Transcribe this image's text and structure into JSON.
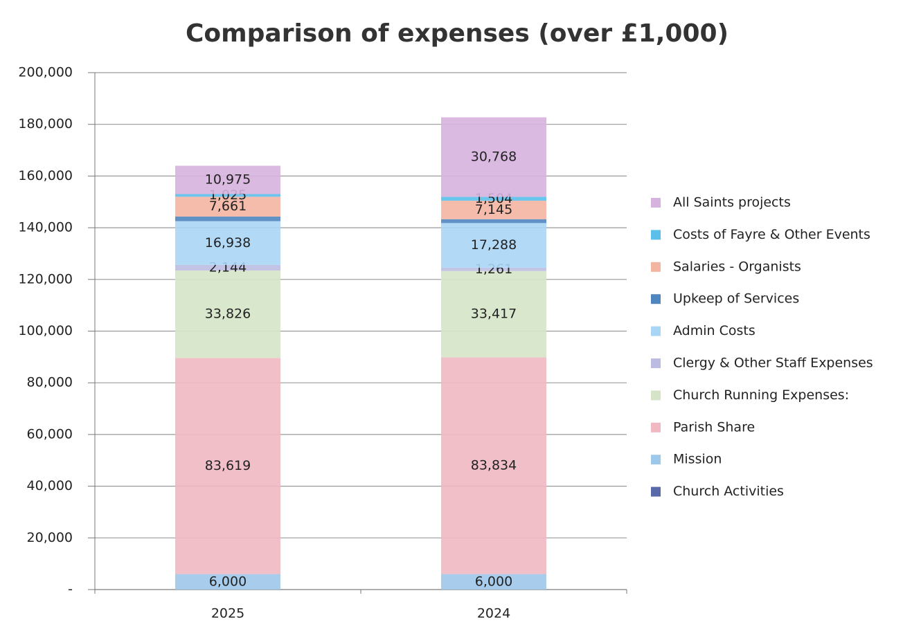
{
  "chart_data": {
    "type": "stacked_bar",
    "title": "Comparison of expenses (over £1,000)",
    "categories": [
      "2025",
      "2024"
    ],
    "series": [
      {
        "name": "Church Activities",
        "color": "#5a6aa8",
        "values": [
          0,
          0
        ],
        "value_labels": [
          null,
          null
        ]
      },
      {
        "name": "Mission",
        "color": "#9ec8ea",
        "values": [
          6000,
          6000
        ],
        "value_labels": [
          "6,000",
          "6,000"
        ]
      },
      {
        "name": "Parish Share",
        "color": "#f0b8c2",
        "values": [
          83619,
          83834
        ],
        "value_labels": [
          "83,619",
          "83,834"
        ]
      },
      {
        "name": "Church Running Expenses:",
        "color": "#d5e4c6",
        "values": [
          33826,
          33417
        ],
        "value_labels": [
          "33,826",
          "33,417"
        ]
      },
      {
        "name": "Clergy & Other Staff Expenses",
        "color": "#bcbce2",
        "values": [
          2144,
          1261
        ],
        "value_labels": [
          "2,144",
          "1,261"
        ]
      },
      {
        "name": "Admin Costs",
        "color": "#aad6f6",
        "values": [
          16938,
          17288
        ],
        "value_labels": [
          "16,938",
          "17,288"
        ]
      },
      {
        "name": "Upkeep of Services",
        "color": "#4f86c0",
        "values": [
          1800,
          1500
        ],
        "value_labels": [
          null,
          null
        ]
      },
      {
        "name": "Salaries - Organists",
        "color": "#f4b4a2",
        "values": [
          7661,
          7145
        ],
        "value_labels": [
          "7,661",
          "7,145"
        ]
      },
      {
        "name": "Costs of Fayre & Other Events",
        "color": "#5bbfea",
        "values": [
          1025,
          1504
        ],
        "value_labels": [
          "1,025",
          "1,504"
        ]
      },
      {
        "name": "All Saints projects",
        "color": "#d6b2de",
        "values": [
          10975,
          30768
        ],
        "value_labels": [
          "10,975",
          "30,768"
        ]
      }
    ],
    "ylim": [
      0,
      200000
    ],
    "yticks": [
      {
        "value": 0,
        "label": "-"
      },
      {
        "value": 20000,
        "label": "20,000"
      },
      {
        "value": 40000,
        "label": "40,000"
      },
      {
        "value": 60000,
        "label": "60,000"
      },
      {
        "value": 80000,
        "label": "80,000"
      },
      {
        "value": 100000,
        "label": "100,000"
      },
      {
        "value": 120000,
        "label": "120,000"
      },
      {
        "value": 140000,
        "label": "140,000"
      },
      {
        "value": 160000,
        "label": "160,000"
      },
      {
        "value": 180000,
        "label": "180,000"
      },
      {
        "value": 200000,
        "label": "200,000"
      }
    ],
    "grid": true,
    "legend": "right"
  }
}
